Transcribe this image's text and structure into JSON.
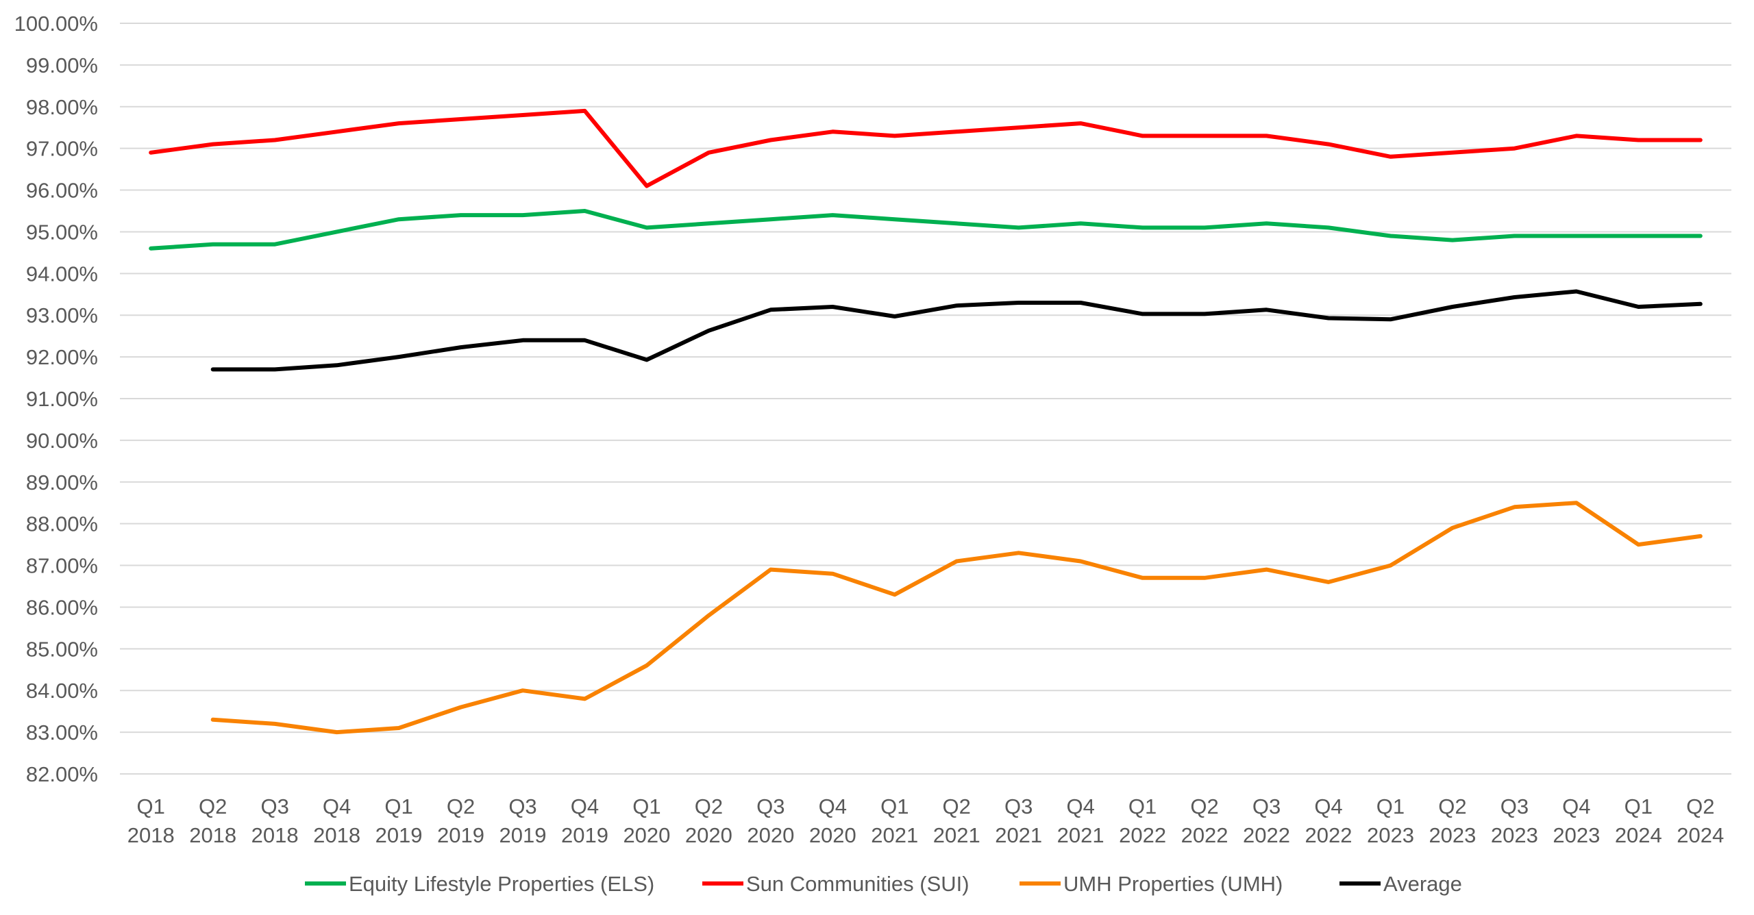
{
  "chart_data": {
    "type": "line",
    "title": "",
    "xlabel": "",
    "ylabel": "",
    "ylim": [
      82,
      100
    ],
    "yticks": [
      "82.00%",
      "83.00%",
      "84.00%",
      "85.00%",
      "86.00%",
      "87.00%",
      "88.00%",
      "89.00%",
      "90.00%",
      "91.00%",
      "92.00%",
      "93.00%",
      "94.00%",
      "95.00%",
      "96.00%",
      "97.00%",
      "98.00%",
      "99.00%",
      "100.00%"
    ],
    "categories": [
      [
        "Q1",
        "2018"
      ],
      [
        "Q2",
        "2018"
      ],
      [
        "Q3",
        "2018"
      ],
      [
        "Q4",
        "2018"
      ],
      [
        "Q1",
        "2019"
      ],
      [
        "Q2",
        "2019"
      ],
      [
        "Q3",
        "2019"
      ],
      [
        "Q4",
        "2019"
      ],
      [
        "Q1",
        "2020"
      ],
      [
        "Q2",
        "2020"
      ],
      [
        "Q3",
        "2020"
      ],
      [
        "Q4",
        "2020"
      ],
      [
        "Q1",
        "2021"
      ],
      [
        "Q2",
        "2021"
      ],
      [
        "Q3",
        "2021"
      ],
      [
        "Q4",
        "2021"
      ],
      [
        "Q1",
        "2022"
      ],
      [
        "Q2",
        "2022"
      ],
      [
        "Q3",
        "2022"
      ],
      [
        "Q4",
        "2022"
      ],
      [
        "Q1",
        "2023"
      ],
      [
        "Q2",
        "2023"
      ],
      [
        "Q3",
        "2023"
      ],
      [
        "Q4",
        "2023"
      ],
      [
        "Q1",
        "2024"
      ],
      [
        "Q2",
        "2024"
      ]
    ],
    "grid": true,
    "legend_position": "bottom",
    "series": [
      {
        "name": "Equity Lifestyle Properties (ELS)",
        "color": "#00B050",
        "values": [
          94.6,
          94.7,
          94.7,
          95.0,
          95.3,
          95.4,
          95.4,
          95.5,
          95.1,
          95.2,
          95.3,
          95.4,
          95.3,
          95.2,
          95.1,
          95.2,
          95.1,
          95.1,
          95.2,
          95.1,
          94.9,
          94.8,
          94.9,
          94.9,
          94.9,
          94.9
        ]
      },
      {
        "name": "Sun Communities (SUI)",
        "color": "#FF0000",
        "values": [
          96.9,
          97.1,
          97.2,
          97.4,
          97.6,
          97.7,
          97.8,
          97.9,
          96.1,
          96.9,
          97.2,
          97.4,
          97.3,
          97.4,
          97.5,
          97.6,
          97.3,
          97.3,
          97.3,
          97.1,
          96.8,
          96.9,
          97.0,
          97.3,
          97.2,
          97.2
        ]
      },
      {
        "name": "UMH Properties (UMH)",
        "color": "#F98200",
        "values": [
          null,
          83.3,
          83.2,
          83.0,
          83.1,
          83.6,
          84.0,
          83.8,
          84.6,
          85.8,
          86.9,
          86.8,
          86.3,
          87.1,
          87.3,
          87.1,
          86.7,
          86.7,
          86.9,
          86.6,
          87.0,
          87.9,
          88.4,
          88.5,
          87.5,
          87.7
        ]
      },
      {
        "name": "Average",
        "color": "#000000",
        "values": [
          null,
          91.7,
          91.7,
          91.8,
          92.0,
          92.23,
          92.4,
          92.4,
          91.93,
          92.63,
          93.13,
          93.2,
          92.97,
          93.23,
          93.3,
          93.3,
          93.03,
          93.03,
          93.13,
          92.93,
          92.9,
          93.2,
          93.43,
          93.57,
          93.2,
          93.27
        ]
      }
    ]
  }
}
